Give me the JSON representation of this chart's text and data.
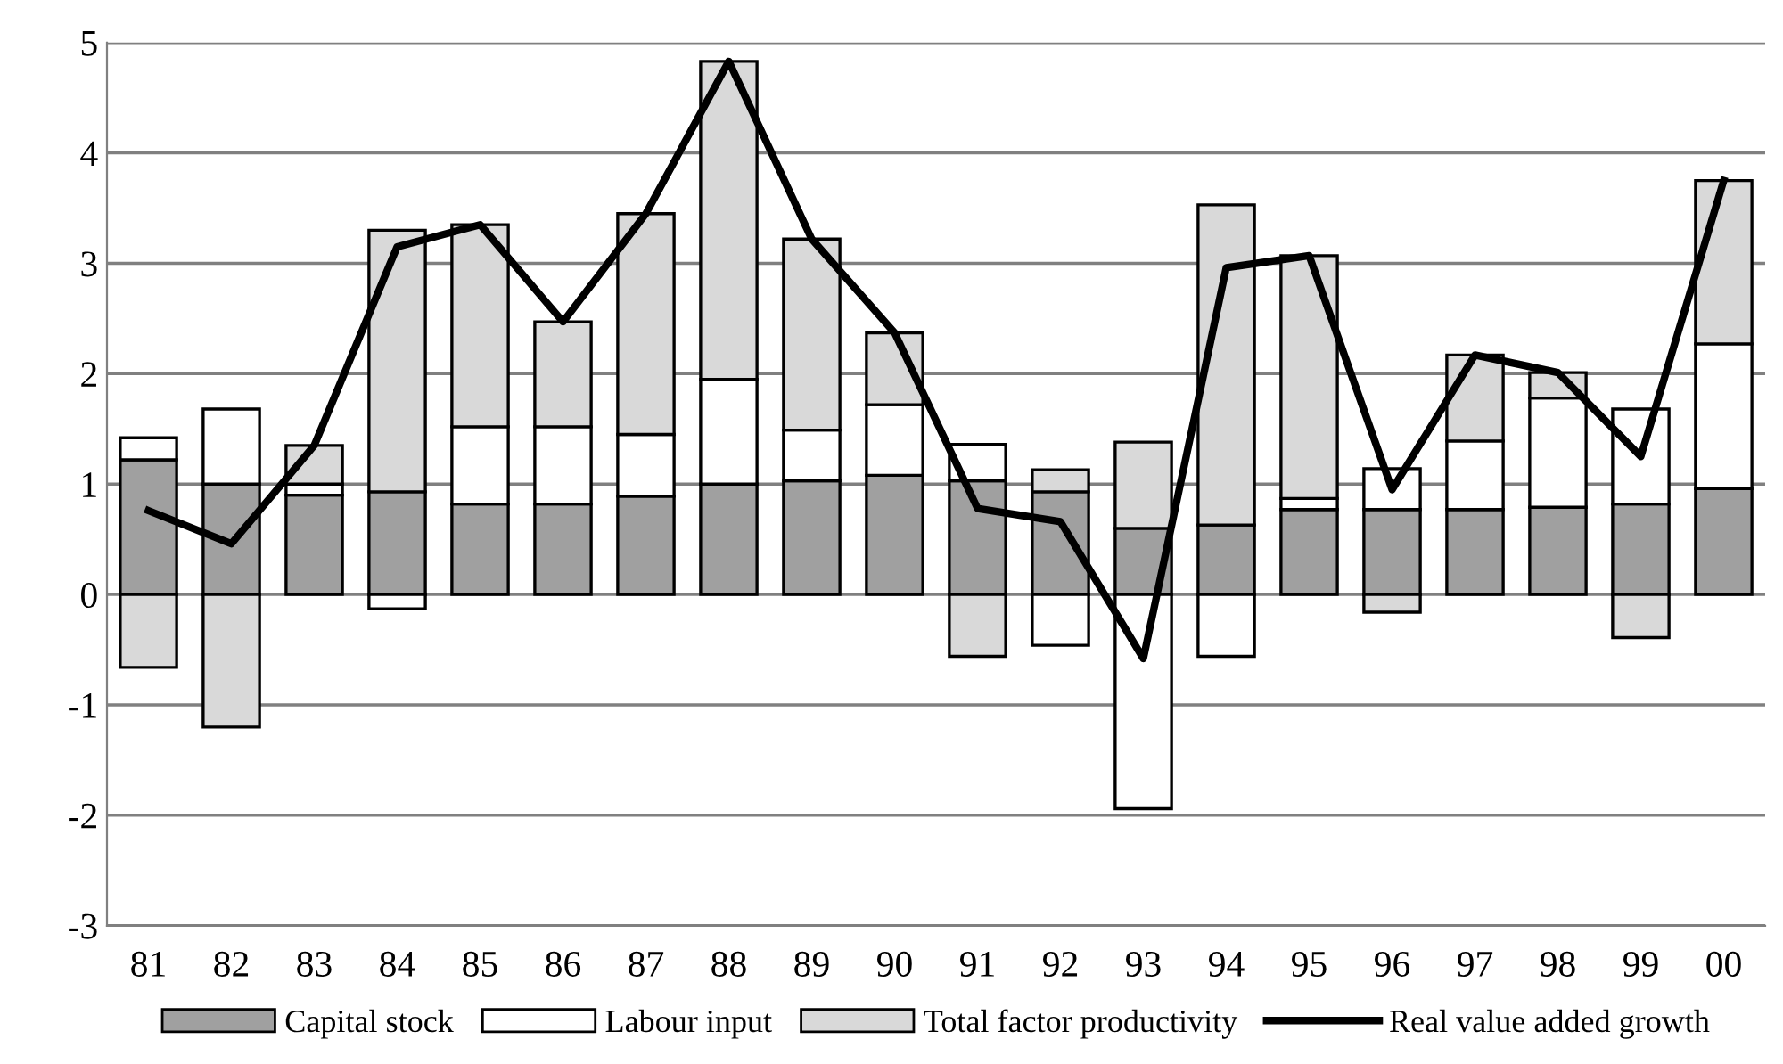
{
  "chart_data": {
    "type": "bar",
    "stacked": true,
    "categories": [
      "81",
      "82",
      "83",
      "84",
      "85",
      "86",
      "87",
      "88",
      "89",
      "90",
      "91",
      "92",
      "93",
      "94",
      "95",
      "96",
      "97",
      "98",
      "99",
      "00"
    ],
    "series": [
      {
        "name": "Capital stock",
        "color": "#a0a0a0",
        "values": [
          1.22,
          1.0,
          0.9,
          0.93,
          0.82,
          0.82,
          0.89,
          1.0,
          1.03,
          1.08,
          1.03,
          0.93,
          0.6,
          0.63,
          0.77,
          0.77,
          0.77,
          0.79,
          0.82,
          0.96
        ]
      },
      {
        "name": "Labour input",
        "color": "#ffffff",
        "values": [
          0.2,
          0.68,
          0.1,
          -0.13,
          0.7,
          0.7,
          0.56,
          0.95,
          0.46,
          0.64,
          0.33,
          -0.46,
          -1.94,
          -0.56,
          0.1,
          0.37,
          0.62,
          0.99,
          0.86,
          1.31
        ]
      },
      {
        "name": "Total factor productivity",
        "color": "#d9d9d9",
        "values": [
          -0.66,
          -1.2,
          0.35,
          2.37,
          1.83,
          0.95,
          2.0,
          2.88,
          1.73,
          0.65,
          -0.56,
          0.2,
          0.78,
          2.9,
          2.2,
          -0.16,
          0.78,
          0.23,
          -0.39,
          1.48
        ]
      },
      {
        "name": "Real value added growth",
        "type": "line",
        "color": "#000000",
        "values": [
          0.76,
          0.46,
          1.35,
          3.15,
          3.35,
          2.47,
          3.45,
          4.83,
          3.22,
          2.37,
          0.78,
          0.66,
          -0.58,
          2.96,
          3.07,
          0.95,
          2.17,
          2.01,
          1.25,
          3.75
        ]
      }
    ],
    "ylim": [
      -3,
      5
    ],
    "yticks": [
      -3,
      -2,
      -1,
      0,
      1,
      2,
      3,
      4,
      5
    ],
    "grid": "y",
    "legend": "bottom"
  }
}
